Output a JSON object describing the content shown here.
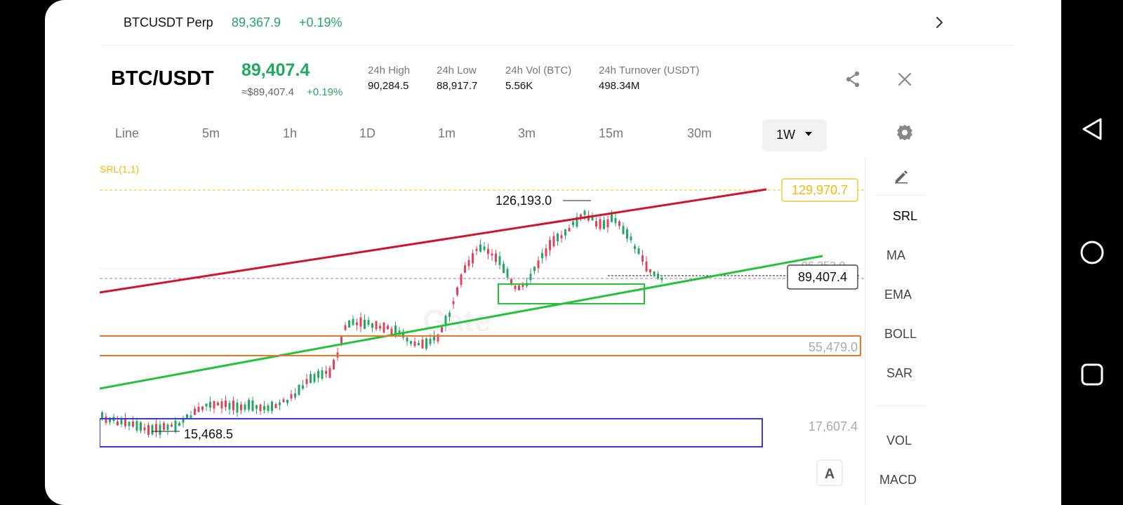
{
  "topbar": {
    "symbol": "BTCUSDT Perp",
    "price": "89,367.9",
    "change": "+0.19%"
  },
  "header": {
    "pair": "BTC/USDT",
    "last_price": "89,407.4",
    "usd_price": "≈$89,407.4",
    "usd_change": "+0.19%",
    "stats": [
      {
        "label": "24h High",
        "value": "90,284.5"
      },
      {
        "label": "24h Low",
        "value": "88,917.7"
      },
      {
        "label": "24h Vol (BTC)",
        "value": "5.56K"
      },
      {
        "label": "24h Turnover (USDT)",
        "value": "498.34M"
      }
    ]
  },
  "timeframes": [
    "Line",
    "5m",
    "1h",
    "1D",
    "1m",
    "3m",
    "15m",
    "30m"
  ],
  "active_timeframe": "1W",
  "chart": {
    "indicator_label": "SRL(1,1)",
    "watermark": "Gate",
    "labels": {
      "high": "126,193.0",
      "low": "15,468.5",
      "dashed_top": "129,970.7",
      "current": "89,407.4",
      "level_mid": "55,479.0",
      "level_low": "17,607.4",
      "hidden_level": "96,353.0"
    },
    "auto_button": "A"
  },
  "indicators": [
    "SRL",
    "MA",
    "EMA",
    "BOLL",
    "SAR",
    "VOL",
    "MACD"
  ],
  "colors": {
    "up": "#22a861",
    "down": "#e0445a",
    "red_line": "#d3122b",
    "green_line": "#22c33a",
    "orange": "#e8732a",
    "blue": "#3a3ad0",
    "gold": "#f0b90b"
  }
}
